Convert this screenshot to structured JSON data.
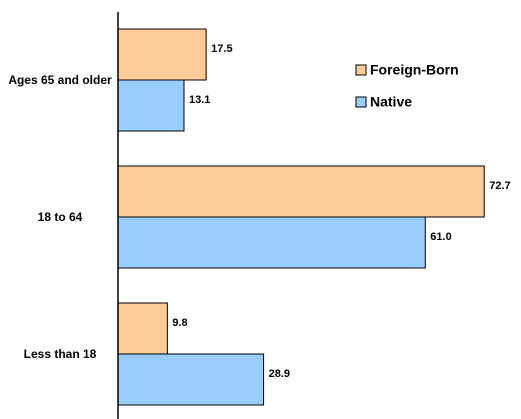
{
  "chart_data": {
    "type": "hbar",
    "categories": [
      "Ages 65 and older",
      "18 to 64",
      "Less than 18"
    ],
    "series": [
      {
        "name": "Foreign-Born",
        "color": "#ffcc99",
        "values": [
          17.5,
          72.7,
          9.8
        ],
        "value_labels": [
          "17.5",
          "72.7",
          "9.8"
        ]
      },
      {
        "name": "Native",
        "color": "#99ccff",
        "values": [
          13.1,
          61.0,
          28.9
        ],
        "value_labels": [
          "13.1",
          "61.0",
          "28.9"
        ]
      }
    ],
    "xlim": [
      0,
      80
    ],
    "legend": "upper right"
  }
}
